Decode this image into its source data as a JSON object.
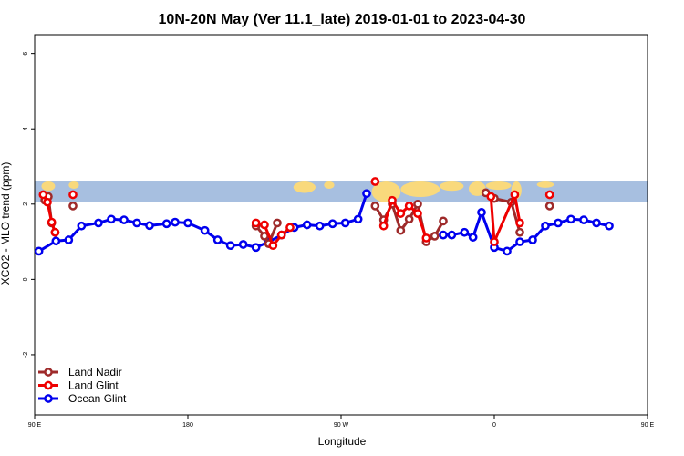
{
  "chart_data": {
    "type": "line",
    "title": "10N-20N May (Ver 11.1_late)   2019-01-01 to 2023-04-30",
    "xlabel": "Longitude",
    "ylabel": "XCO2 - MLO trend (ppm)",
    "xlim": [
      -90,
      270
    ],
    "ylim": [
      -3.6,
      6.5
    ],
    "x_ticks": [
      {
        "value": -90,
        "label": "90 E"
      },
      {
        "value": 0,
        "label": "180"
      },
      {
        "value": 90,
        "label": "90 W"
      },
      {
        "value": 180,
        "label": "0"
      },
      {
        "value": 270,
        "label": "90 E"
      },
      {
        "value": 360,
        "label": "180"
      }
    ],
    "y_ticks": [
      {
        "value": -2,
        "label": "-2"
      },
      {
        "value": 0,
        "label": "0"
      },
      {
        "value": 2,
        "label": "2"
      },
      {
        "value": 4,
        "label": "4"
      },
      {
        "value": 6,
        "label": "6"
      }
    ],
    "map_band": {
      "y0": 2.05,
      "y1": 2.6,
      "ocean_color": "#a7bfe0",
      "land_color": "#f9d97c"
    },
    "legend_position": "bottom-left",
    "series": [
      {
        "name": "Ocean Glint",
        "color": "#0000ee",
        "points": [
          [
            -87.5,
            0.75
          ],
          [
            -77.5,
            1.02
          ],
          [
            -70,
            1.05
          ],
          [
            -62.5,
            1.42
          ],
          [
            -52.5,
            1.5
          ],
          [
            -45,
            1.6
          ],
          [
            -37.5,
            1.58
          ],
          [
            -30,
            1.5
          ],
          [
            -22.5,
            1.43
          ],
          [
            -12.5,
            1.48
          ],
          [
            -7.5,
            1.52
          ],
          [
            0,
            1.5
          ],
          [
            10,
            1.3
          ],
          [
            17.5,
            1.05
          ],
          [
            25,
            0.9
          ],
          [
            32.5,
            0.93
          ],
          [
            40,
            0.85
          ],
          [
            47.5,
            1.0
          ],
          [
            55,
            1.18
          ],
          [
            62.5,
            1.38
          ],
          [
            70,
            1.45
          ],
          [
            77.5,
            1.42
          ],
          [
            85,
            1.48
          ],
          [
            92.5,
            1.5
          ],
          [
            100,
            1.6
          ],
          [
            105,
            2.28
          ]
        ],
        "break_after": 26,
        "points2": [
          [
            150,
            1.18
          ],
          [
            155,
            1.18
          ],
          [
            162.5,
            1.25
          ],
          [
            167.5,
            1.12
          ],
          [
            172.5,
            1.78
          ],
          [
            180,
            0.85
          ],
          [
            187.5,
            0.75
          ],
          [
            195,
            1.0
          ],
          [
            202.5,
            1.05
          ],
          [
            210,
            1.42
          ],
          [
            217.5,
            1.5
          ],
          [
            225,
            1.6
          ],
          [
            232.5,
            1.58
          ],
          [
            240,
            1.5
          ],
          [
            247.5,
            1.42
          ]
        ]
      },
      {
        "name": "Land Nadir",
        "color": "#9e2a2a",
        "segments": [
          [
            [
              -84,
              2.1
            ],
            [
              -82,
              2.2
            ],
            [
              -80,
              1.5
            ],
            [
              -78,
              1.25
            ]
          ],
          [
            [
              -67.5,
              1.95
            ]
          ],
          [
            [
              40,
              1.42
            ],
            [
              45,
              1.15
            ],
            [
              47.5,
              0.95
            ],
            [
              52.5,
              1.5
            ]
          ],
          [
            [
              110,
              1.95
            ],
            [
              115,
              1.58
            ],
            [
              120,
              2.0
            ],
            [
              125,
              1.3
            ],
            [
              130,
              1.6
            ],
            [
              135,
              2.0
            ],
            [
              140,
              1.0
            ],
            [
              145,
              1.15
            ],
            [
              150,
              1.55
            ]
          ],
          [
            [
              175,
              2.3
            ],
            [
              180,
              2.15
            ],
            [
              190,
              2.05
            ],
            [
              195,
              1.25
            ]
          ],
          [
            [
              212.5,
              1.95
            ]
          ]
        ]
      },
      {
        "name": "Land Glint",
        "color": "#ee0000",
        "segments": [
          [
            [
              -85,
              2.25
            ],
            [
              -82.5,
              2.05
            ],
            [
              -80,
              1.52
            ],
            [
              -78,
              1.25
            ]
          ],
          [
            [
              -67.5,
              2.25
            ]
          ],
          [
            [
              40,
              1.5
            ],
            [
              45,
              1.45
            ],
            [
              50,
              0.9
            ],
            [
              55,
              1.18
            ],
            [
              60,
              1.38
            ]
          ],
          [
            [
              110,
              2.6
            ]
          ],
          [
            [
              115,
              1.42
            ],
            [
              120,
              2.1
            ],
            [
              125,
              1.75
            ],
            [
              130,
              1.95
            ],
            [
              135,
              1.75
            ],
            [
              140,
              1.1
            ]
          ],
          [
            [
              178,
              2.2
            ],
            [
              180,
              1.0
            ],
            [
              192,
              2.25
            ],
            [
              195,
              1.5
            ]
          ],
          [
            [
              212.5,
              2.25
            ]
          ]
        ]
      }
    ]
  },
  "legend": {
    "items": [
      {
        "label": "Land Nadir",
        "color": "#9e2a2a"
      },
      {
        "label": "Land Glint",
        "color": "#ee0000"
      },
      {
        "label": "Ocean Glint",
        "color": "#0000ee"
      }
    ]
  }
}
